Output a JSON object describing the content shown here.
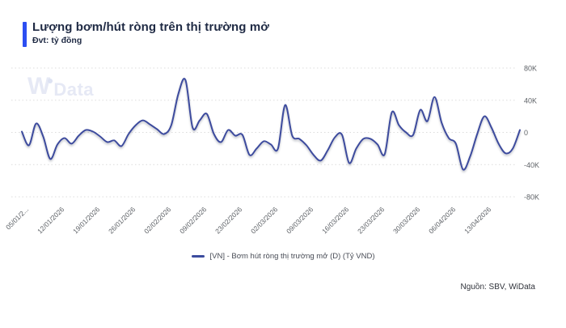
{
  "header": {
    "title": "Lượng bơm/hút ròng trên thị trường mở",
    "subtitle": "Đvt: tỷ đồng",
    "accent_color": "#2C4EF2"
  },
  "watermark": {
    "part1": "W",
    "part2": "Data"
  },
  "legend": {
    "label": "[VN] - Bơm hút ròng thị trường mở (D) (Tỷ VND)"
  },
  "footer": {
    "source": "Nguồn: SBV, WiData"
  },
  "colors": {
    "line": "#3C4B9E",
    "grid": "#DCDCDC",
    "axis_text": "#5F6368",
    "title_text": "#1F2A44"
  },
  "chart_data": {
    "type": "line",
    "title": "Lượng bơm/hút ròng trên thị trường mở",
    "ylabel": "tỷ đồng",
    "ylim": [
      -80000,
      80000
    ],
    "grid": "horizontal-dotted",
    "legend_position": "bottom-center",
    "y_ticks": [
      {
        "label": "80K",
        "value": 80000
      },
      {
        "label": "40K",
        "value": 40000
      },
      {
        "label": "0",
        "value": 0
      },
      {
        "label": "-40K",
        "value": -40000
      },
      {
        "label": "-80K",
        "value": -80000
      }
    ],
    "x_tick_labels": [
      "05/01/2...",
      "12/01/2026",
      "19/01/2026",
      "26/01/2026",
      "02/02/2026",
      "09/02/2026",
      "23/02/2026",
      "02/03/2026",
      "09/03/2026",
      "16/03/2026",
      "23/03/2026",
      "30/03/2026",
      "06/04/2026",
      "13/04/2026"
    ],
    "x_tick_indices": [
      1,
      6,
      11,
      16,
      21,
      26,
      31,
      36,
      41,
      46,
      51,
      56,
      61,
      66
    ],
    "series": [
      {
        "name": "[VN] - Bơm hút ròng thị trường mở (D) (Tỷ VND)",
        "frequency": "daily (trading days, week of 16/02 absent)",
        "values": [
          1000,
          -16000,
          11000,
          -5000,
          -33000,
          -15000,
          -7000,
          -14000,
          -4000,
          3000,
          1000,
          -5000,
          -12000,
          -10000,
          -17000,
          -2000,
          9000,
          15000,
          10000,
          4000,
          -2000,
          9000,
          48000,
          65000,
          6000,
          15000,
          23000,
          -2000,
          -12000,
          3000,
          -4000,
          -3000,
          -28000,
          -20000,
          -11000,
          -15000,
          -20000,
          34000,
          -4000,
          -8000,
          -16000,
          -28000,
          -35000,
          -22000,
          -6000,
          -3000,
          -38000,
          -20000,
          -8000,
          -8000,
          -15000,
          -27000,
          25000,
          9000,
          0,
          -3000,
          28000,
          14000,
          44000,
          12000,
          -7000,
          -14000,
          -46000,
          -30000,
          -2000,
          20000,
          6000,
          -14000,
          -26000,
          -20000,
          3000
        ]
      }
    ]
  }
}
